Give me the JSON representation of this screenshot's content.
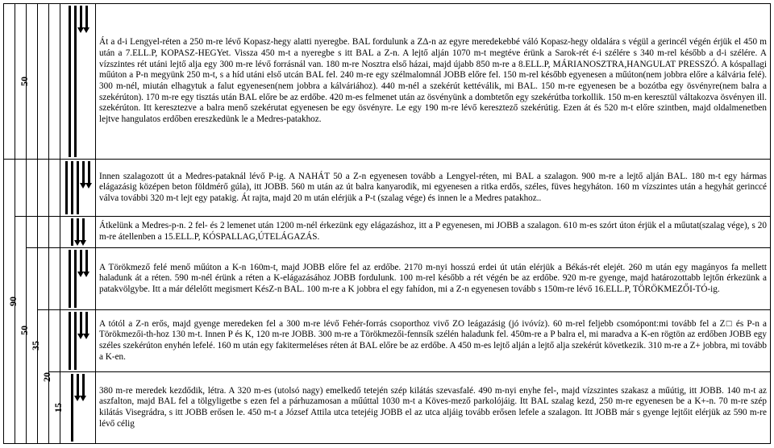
{
  "rails": [
    "90",
    "50",
    "35",
    "20",
    "15"
  ],
  "rows": [
    {
      "rail_show": [
        false,
        true,
        false,
        false,
        false
      ],
      "marks": [
        {
          "type": "tall"
        },
        {
          "type": "tall"
        },
        {
          "type": "short"
        },
        {
          "type": "short"
        }
      ],
      "text": "Át a d-i Lengyel-réten a 250 m-re lévő Kopasz-hegy alatti nyeregbe. BAL fordulunk a ZΔ-n az egyre meredekebbé váló Kopasz-hegy oldalára s végül a gerincél végén érjük el 450 m után a 7.ELL.P, KOPASZ-HEGYet. Vissza 450 m-t a nyeregbe s itt BAL a Z-n. A lejtő alján 1070 m-t megtéve érünk a Sarok-rét é-i szélére s 340 m-rel később a d-i szélére. A vízszintes rét utáni lejtő alja egy 300 m-re lévő forrásnál van. 180 m-re Nosztra első házai, majd újabb 850 m-re a 8.ELL.P, MÁRIANOSZTRA,HANGULAT PRESSZÓ. A kóspallagi műúton a P-n megyünk 250 m-t, s a híd utáni első utcán BAL fel. 240 m-re egy szélmalomnál JOBB előre fel. 150 m-rel később egyenesen a műúton(nem jobbra előre a kálvária felé). 300 m-nél, miután elhagytuk a falut egyenesen(nem jobbra a kálváriához). 440 m-nél a szekérút kettéválik, mi BAL. 150 m-re egyenesen be a bozótba egy ösvényre(nem balra a szekérúton). 170 m-re egy tisztás után BAL előre be az erdőbe. 420 m-es felmenet után az ösvényünk a dombtetőn egy szekérútba torkollik. 150 m-en keresztül váltakozva ösvényen ill. szekérúton. Itt keresztezve a balra menő szekérutat egyenesen be egy ösvényre. Le egy 190 m-re lévő keresztező szekérútig. Ezen át és 520 m-t előre szintben, majd oldalmenetben lejtve hangulatos erdőben ereszkedünk le a Medres-patakhoz."
    },
    {
      "rail_show": [
        true,
        false,
        false,
        false,
        false
      ],
      "marks": [
        {
          "type": "tall"
        },
        {
          "type": "tall"
        },
        {
          "type": "tall"
        },
        {
          "type": "short"
        },
        {
          "type": "short"
        }
      ],
      "text": "Innen szalagozott út a Medres-pataknál lévő P-ig. A NAHÁT 50 a Z-n egyenesen tovább a Lengyel-réten, mi BAL a szalagon. 900 m-re a lejtő alján BAL. 180 m-t egy hármas elágazásig középen beton földmérő gúla), itt JOBB. 560 m után az út balra kanyarodik, mi egyenesen a ritka erdős, széles, füves hegyháton. 160 m vízszintes után a hegyhát gerinccé válva további 320 m-t lejt egy patakig. Át rajta, majd 20 m után elérjük a P-t (szalag vége) és innen le a Medres patakhoz.."
    },
    {
      "rail_show": [
        true,
        true,
        false,
        false,
        false
      ],
      "marks": [
        {
          "type": "tall"
        },
        {
          "type": "short"
        },
        {
          "type": "short"
        }
      ],
      "text": "Átkelünk a Medres-p-n. 2 fel- és 2 lemenet után 1200 m-nél érkezünk egy elágazáshoz, itt a P egyenesen, mi JOBB a szalagon. 610 m-es szórt úton érjük el a műutat(szalag vége), s 20 m-re átellenben a 15.ELL.P, KÓSPALLAG,ÚTELÁGAZÁS."
    },
    {
      "rail_show": [
        true,
        true,
        true,
        false,
        false
      ],
      "marks": [
        {
          "type": "tall"
        },
        {
          "type": "tall"
        },
        {
          "type": "short"
        },
        {
          "type": "short"
        }
      ],
      "text": "A Törökmező felé menő műúton a K-n 160m-t, majd JOBB előre fel az erdőbe. 2170 m-nyi hosszú erdei út után elérjük a Békás-rét elejét. 260 m után egy magányos fa mellett haladunk át a réten. 590 m-nél érünk a réten a K-elágazásához JOBB fordulunk. 100 m-rel később a rét végén be az erdőbe. 920 m-re gyenge, majd határozottabb lejtőn érkezünk a patakvölgybe. Itt a már délelőtt megismert KésZ-n BAL. 100 m-re a K jobbra el egy fahídon, mi a Z-n egyenesen tovább s 150m-re lévő 16.ELL.P, TÖRÖKMEZŐI-TÓ-ig."
    },
    {
      "rail_show": [
        true,
        true,
        true,
        true,
        false
      ],
      "marks": [
        {
          "type": "tall"
        },
        {
          "type": "tall"
        },
        {
          "type": "short"
        },
        {
          "type": "short"
        }
      ],
      "text": "A tótól a Z-n erős, majd gyenge meredeken fel a 300 m-re lévő Fehér-forrás csoporthoz vivő ZO leágazásig (jó ivóvíz). 60 m-rel feljebb csomópont:mi tovább fel a Z□ és P-n a Törökmezői-th-hoz 130 m-t. Innen P és K, 120 m-re JOBB. 300 m-re a Törökmezői-fennsík szélén haladunk fel. 450m-re a P balra el, mi maradva a K-en rögtön az erdőben JOBB egy széles szekérúton enyhén lefelé. 160 m után egy fakitermeléses réten át BAL előre be az erdőbe. A 450 m-es lejtő alján a lejtő alja szekérút következik. 310 m-re a Z+ jobbra, mi tovább a K-en."
    },
    {
      "rail_show": [
        true,
        true,
        true,
        true,
        true
      ],
      "marks": [
        {
          "type": "tall"
        },
        {
          "type": "short"
        },
        {
          "type": "short"
        }
      ],
      "text": " 380 m-re meredek kezdődik, létra. A 320 m-es (utolsó nagy) emelkedő tetején szép kilátás szevasfalé. 490 m-nyi enyhe fel-, majd vízszintes szakasz a műútig, itt JOBB. 140 m-t az aszfalton, majd BAL fel a tölgyligetbe s ezen fel a párhuzamosan a műúttal 1030 m-t a Köves-mező parkolójáig. Itt BAL szalag kezd, 250 m-re egyenesen be a K+-n. 70 m-re szép kilátás Visegrádra, s itt JOBB erősen le. 450 m-t a József Attila utca tetejéig JOBB el az utca aljáig tovább erősen lefele a szalagon. Itt JOBB már s gyenge lejtőit elérjük az 590 m-re lévő célig"
    }
  ]
}
